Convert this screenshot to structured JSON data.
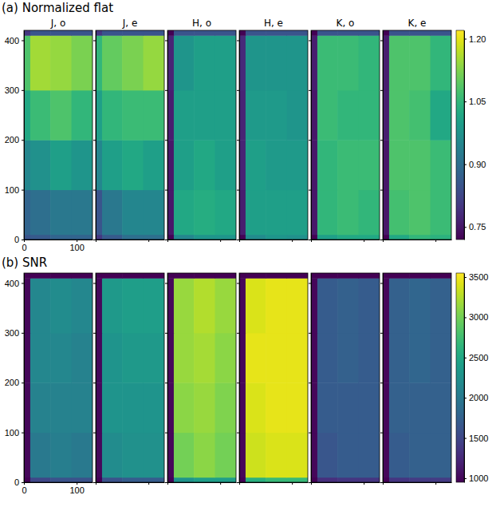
{
  "chart_data": [
    {
      "type": "heatmap",
      "title": "(a) Normalized flat",
      "xlim": [
        0,
        130
      ],
      "ylim": [
        0,
        420
      ],
      "xticks": [
        0,
        100
      ],
      "yticks": [
        0,
        100,
        200,
        300,
        400
      ],
      "x_edges": [
        0,
        12,
        50,
        90,
        130
      ],
      "y_edges": [
        0,
        10,
        100,
        200,
        300,
        410,
        420
      ],
      "colorbar": {
        "range": [
          0.72,
          1.22
        ],
        "ticks": [
          0.75,
          {
            "value": 0.9,
            "label": "0.90"
          },
          1.05,
          {
            "value": 1.2,
            "label": "1.20"
          }
        ]
      },
      "panels": [
        {
          "title": "J, o",
          "cells": [
            [
              0.85,
              0.86,
              0.88,
              0.88
            ],
            [
              0.88,
              0.9,
              0.92,
              0.92
            ],
            [
              0.95,
              0.97,
              1.0,
              0.98
            ],
            [
              1.02,
              1.06,
              1.08,
              1.05
            ],
            [
              1.08,
              1.15,
              1.14,
              1.12
            ],
            [
              0.8,
              0.85,
              0.85,
              0.85
            ]
          ]
        },
        {
          "title": "J, e",
          "cells": [
            [
              0.8,
              0.86,
              0.9,
              0.9
            ],
            [
              0.85,
              0.92,
              0.95,
              0.95
            ],
            [
              0.95,
              1.0,
              1.02,
              1.0
            ],
            [
              1.0,
              1.05,
              1.06,
              1.06
            ],
            [
              1.05,
              1.1,
              1.12,
              1.14
            ],
            [
              0.8,
              0.85,
              0.85,
              0.85
            ]
          ]
        },
        {
          "title": "H, o",
          "cells": [
            [
              0.72,
              0.95,
              0.98,
              0.98
            ],
            [
              0.75,
              1.02,
              1.03,
              1.02
            ],
            [
              0.75,
              1.0,
              1.02,
              1.0
            ],
            [
              0.76,
              1.0,
              1.0,
              1.0
            ],
            [
              0.77,
              0.98,
              1.0,
              1.0
            ],
            [
              0.72,
              0.85,
              0.85,
              0.85
            ]
          ]
        },
        {
          "title": "H, e",
          "cells": [
            [
              0.72,
              0.96,
              0.98,
              0.97
            ],
            [
              0.76,
              1.0,
              1.0,
              1.0
            ],
            [
              0.77,
              1.0,
              0.99,
              0.99
            ],
            [
              0.77,
              0.99,
              0.99,
              0.98
            ],
            [
              0.78,
              0.98,
              0.98,
              0.98
            ],
            [
              0.72,
              0.85,
              0.85,
              0.85
            ]
          ]
        },
        {
          "title": "K, o",
          "cells": [
            [
              0.72,
              1.0,
              1.02,
              1.02
            ],
            [
              0.75,
              1.05,
              1.06,
              1.05
            ],
            [
              0.75,
              1.05,
              1.06,
              1.06
            ],
            [
              0.75,
              1.06,
              1.05,
              1.05
            ],
            [
              0.76,
              1.06,
              1.06,
              1.05
            ],
            [
              0.72,
              0.85,
              0.85,
              0.85
            ]
          ]
        },
        {
          "title": "K, e",
          "cells": [
            [
              0.72,
              1.02,
              1.05,
              1.04
            ],
            [
              0.75,
              1.07,
              1.08,
              1.06
            ],
            [
              0.75,
              1.08,
              1.08,
              1.06
            ],
            [
              0.76,
              1.08,
              1.07,
              1.02
            ],
            [
              0.76,
              1.08,
              1.08,
              1.05
            ],
            [
              0.72,
              0.85,
              0.85,
              0.85
            ]
          ]
        }
      ]
    },
    {
      "type": "heatmap",
      "title": "(b) SNR",
      "xlim": [
        0,
        130
      ],
      "ylim": [
        0,
        420
      ],
      "xticks": [
        0,
        100
      ],
      "yticks": [
        0,
        100,
        200,
        300,
        400
      ],
      "x_edges": [
        0,
        12,
        50,
        90,
        130
      ],
      "y_edges": [
        0,
        10,
        100,
        200,
        300,
        410,
        420
      ],
      "colorbar": {
        "range": [
          950,
          3550
        ],
        "ticks": [
          1000,
          1500,
          2000,
          2500,
          3000,
          3500
        ]
      },
      "panels": [
        {
          "cells": [
            [
              950,
              1500,
              1600,
              1600
            ],
            [
              1000,
              2000,
              2050,
              2000
            ],
            [
              1000,
              2100,
              2100,
              2100
            ],
            [
              1000,
              2150,
              2150,
              2100
            ],
            [
              1000,
              2150,
              2200,
              2150
            ],
            [
              950,
              950,
              950,
              950
            ]
          ]
        },
        {
          "cells": [
            [
              950,
              1600,
              1700,
              1700
            ],
            [
              1000,
              2200,
              2250,
              2250
            ],
            [
              1000,
              2300,
              2300,
              2300
            ],
            [
              1000,
              2300,
              2350,
              2350
            ],
            [
              1000,
              2350,
              2400,
              2400
            ],
            [
              950,
              950,
              950,
              950
            ]
          ]
        },
        {
          "cells": [
            [
              950,
              2300,
              2400,
              2400
            ],
            [
              1000,
              3000,
              3100,
              3000
            ],
            [
              1000,
              3100,
              3150,
              3050
            ],
            [
              1000,
              3150,
              3200,
              3100
            ],
            [
              1000,
              3150,
              3250,
              3150
            ],
            [
              950,
              950,
              950,
              950
            ]
          ]
        },
        {
          "cells": [
            [
              950,
              2600,
              2700,
              2700
            ],
            [
              1000,
              3350,
              3400,
              3400
            ],
            [
              1000,
              3400,
              3450,
              3450
            ],
            [
              1000,
              3450,
              3450,
              3450
            ],
            [
              1000,
              3400,
              3450,
              3450
            ],
            [
              950,
              950,
              950,
              950
            ]
          ]
        },
        {
          "cells": [
            [
              950,
              1300,
              1350,
              1350
            ],
            [
              1000,
              1650,
              1700,
              1700
            ],
            [
              1000,
              1700,
              1700,
              1700
            ],
            [
              1000,
              1700,
              1750,
              1700
            ],
            [
              1000,
              1700,
              1750,
              1700
            ],
            [
              950,
              950,
              950,
              950
            ]
          ]
        },
        {
          "cells": [
            [
              950,
              1350,
              1400,
              1400
            ],
            [
              1000,
              1700,
              1750,
              1750
            ],
            [
              1000,
              1750,
              1750,
              1750
            ],
            [
              1000,
              1750,
              1800,
              1750
            ],
            [
              1000,
              1750,
              1800,
              1750
            ],
            [
              950,
              950,
              950,
              950
            ]
          ]
        }
      ]
    }
  ]
}
